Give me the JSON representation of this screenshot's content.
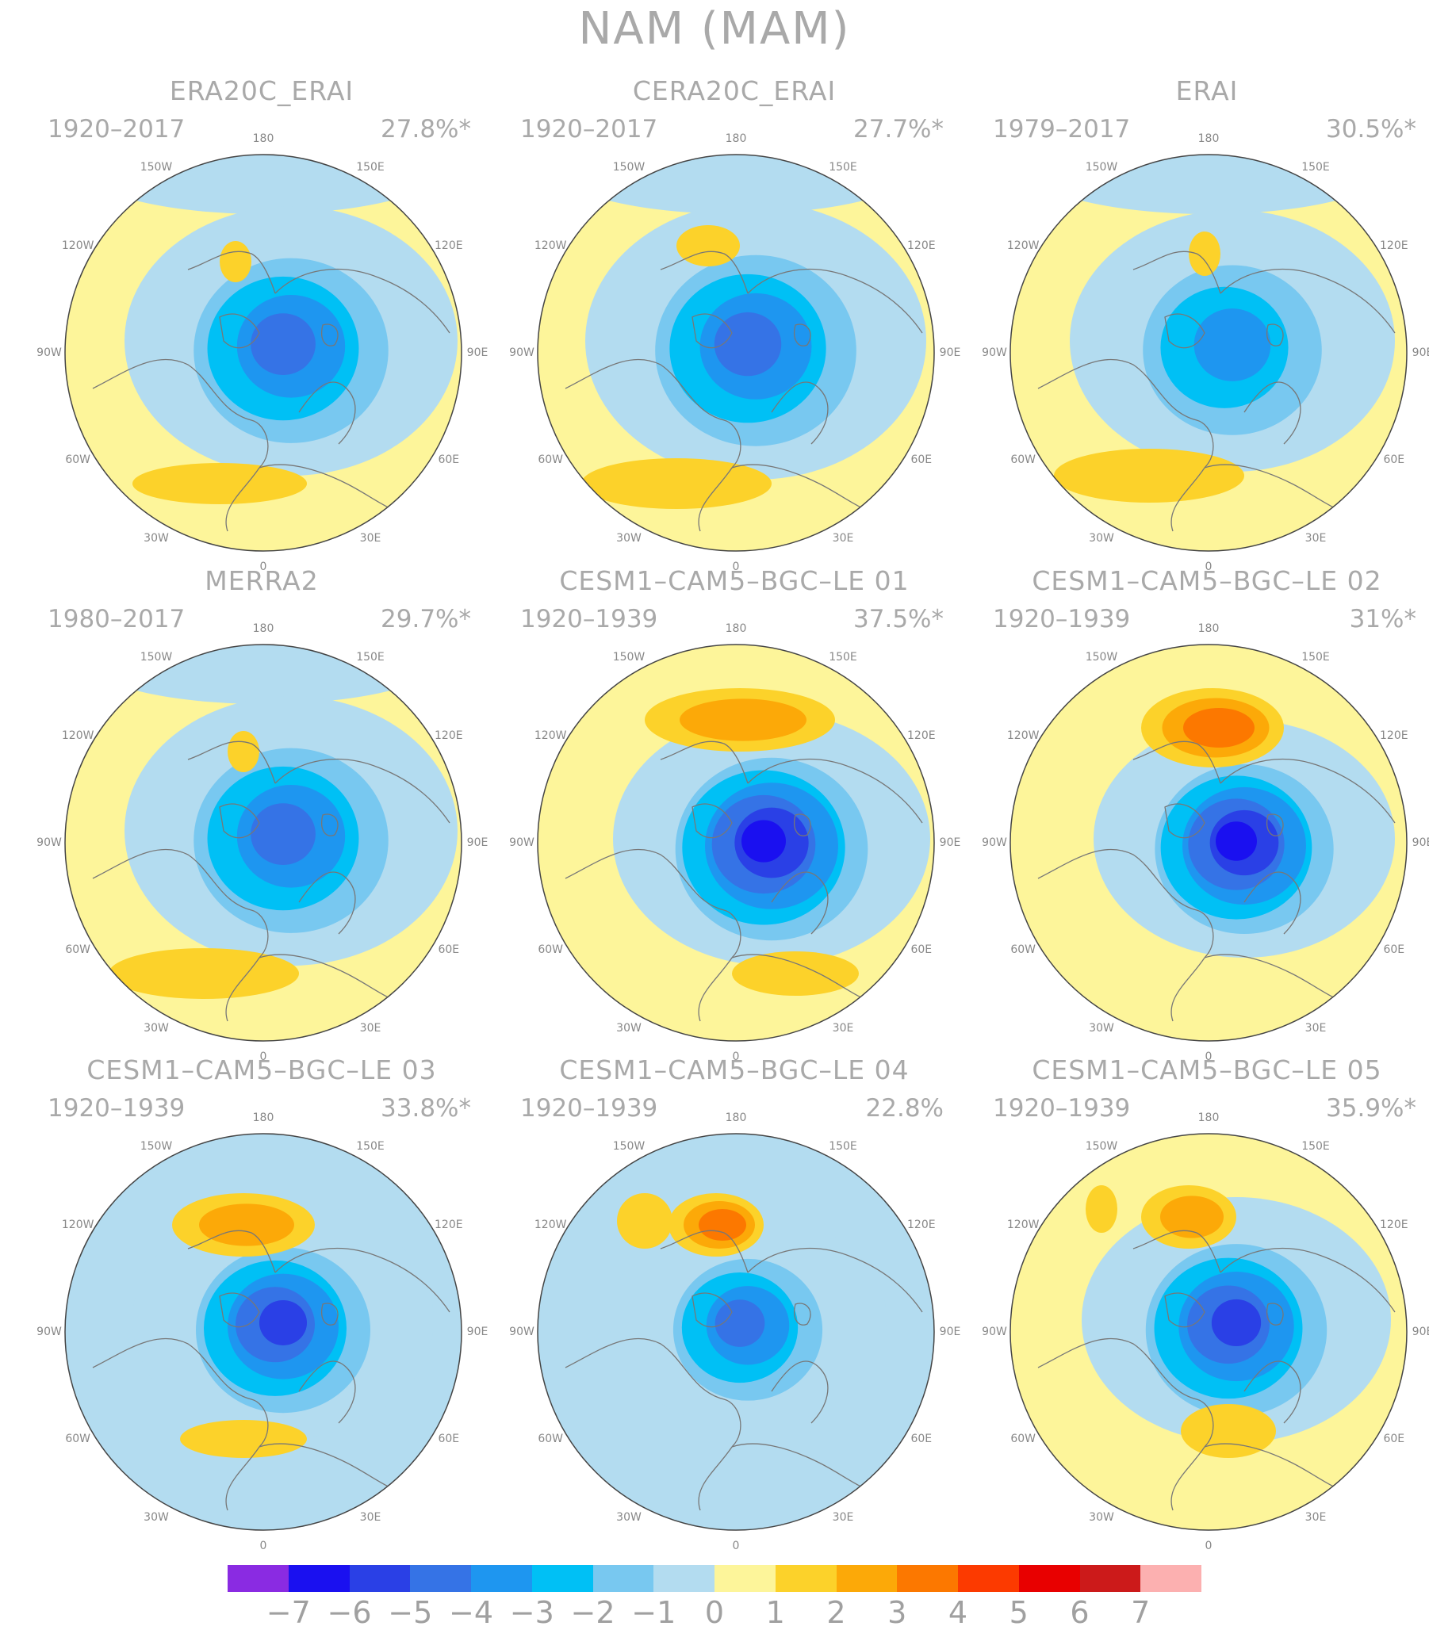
{
  "title": "NAM (MAM)",
  "colors": {
    "ocean_neg1": "#b3dcf0",
    "pos1": "#fdf59a",
    "coast": "#777777",
    "circle": "#444444"
  },
  "longitude_labels": [
    "180",
    "150E",
    "120E",
    "90E",
    "60E",
    "30E",
    "0",
    "30W",
    "60W",
    "90W",
    "120W",
    "150W"
  ],
  "panels": [
    {
      "title": "ERA20C_ERAI",
      "period": "1920–2017",
      "variance": "27.8%*"
    },
    {
      "title": "CERA20C_ERAI",
      "period": "1920–2017",
      "variance": "27.7%*"
    },
    {
      "title": "ERAI",
      "period": "1979–2017",
      "variance": "30.5%*"
    },
    {
      "title": "MERRA2",
      "period": "1980–2017",
      "variance": "29.7%*"
    },
    {
      "title": "CESM1–CAM5–BGC–LE 01",
      "period": "1920–1939",
      "variance": "37.5%*"
    },
    {
      "title": "CESM1–CAM5–BGC–LE 02",
      "period": "1920–1939",
      "variance": "31%*"
    },
    {
      "title": "CESM1–CAM5–BGC–LE 03",
      "period": "1920–1939",
      "variance": "33.8%*"
    },
    {
      "title": "CESM1–CAM5–BGC–LE 04",
      "period": "1920–1939",
      "variance": "22.8%"
    },
    {
      "title": "CESM1–CAM5–BGC–LE 05",
      "period": "1920–1939",
      "variance": "35.9%*"
    }
  ],
  "colorbar": {
    "labels": [
      "−7",
      "−6",
      "−5",
      "−4",
      "−3",
      "−2",
      "−1",
      "0",
      "1",
      "2",
      "3",
      "4",
      "5",
      "6",
      "7"
    ],
    "colors": [
      "#8a2be2",
      "#1a10f0",
      "#2a40e6",
      "#3573e6",
      "#1e96f0",
      "#00c0f5",
      "#78c8f0",
      "#b3dcf0",
      "#fdf59a",
      "#fcd22a",
      "#fca908",
      "#fc7800",
      "#fc3a00",
      "#e80000",
      "#cc1a1a",
      "#fcb0b0"
    ]
  }
}
